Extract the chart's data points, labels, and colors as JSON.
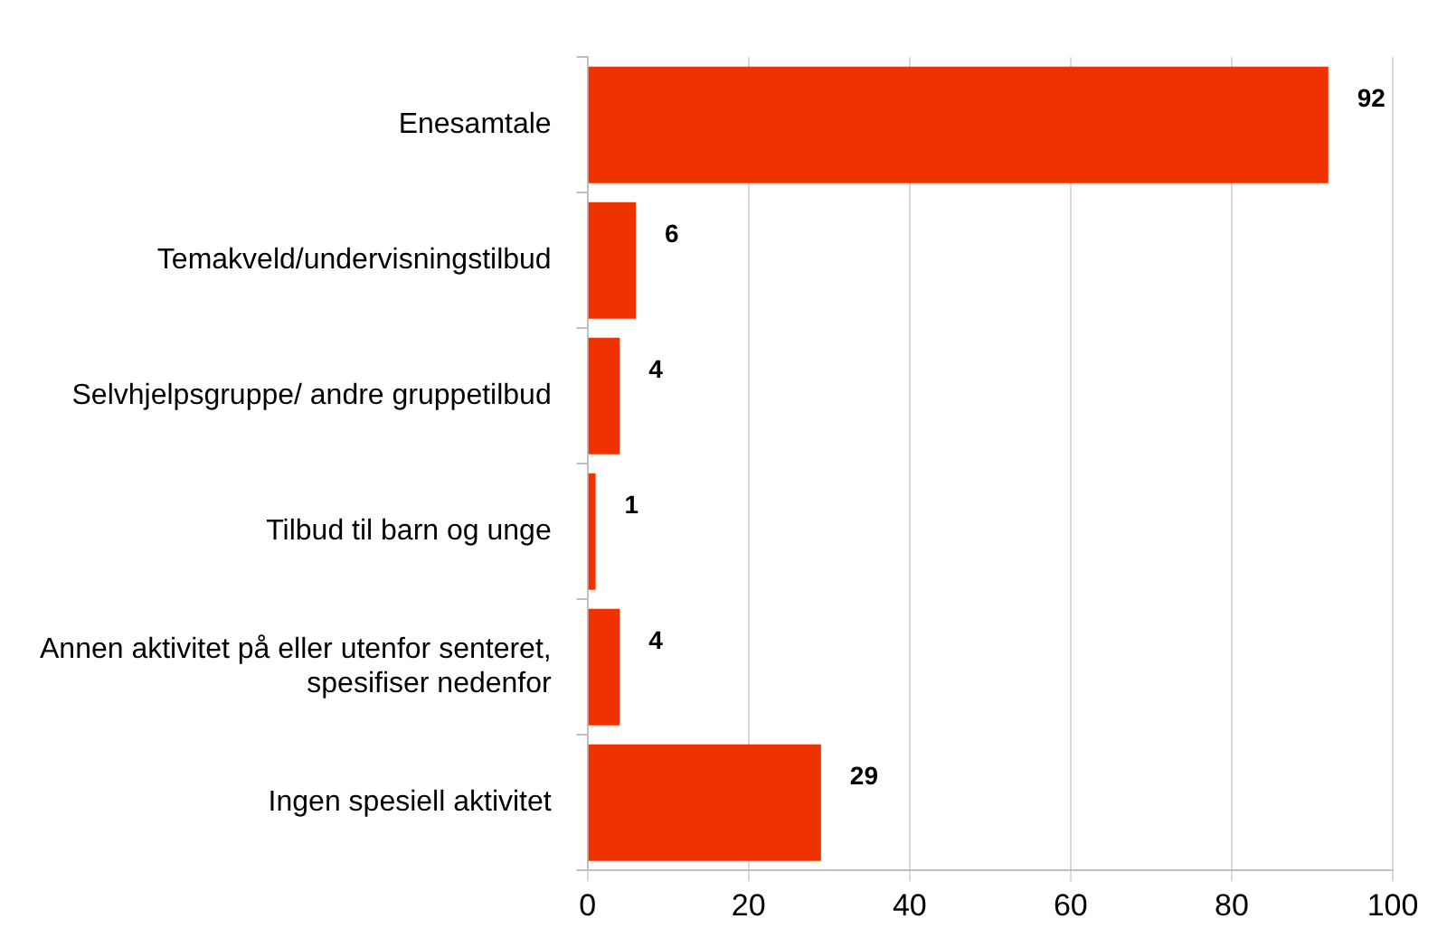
{
  "chart_data": {
    "type": "bar",
    "orientation": "horizontal",
    "categories": [
      "Enesamtale",
      "Temakveld/undervisningstilbud",
      "Selvhjelpsgruppe/ andre gruppetilbud",
      "Tilbud til barn og unge",
      "Annen aktivitet på eller utenfor senteret, spesifiser nedenfor",
      "Ingen spesiell aktivitet"
    ],
    "values": [
      92,
      6,
      4,
      1,
      4,
      29
    ],
    "color": "#ee3300",
    "xlim": [
      0,
      100
    ],
    "xticks": [
      0,
      20,
      40,
      60,
      80,
      100
    ],
    "grid": "x",
    "legend": false,
    "data_labels": true
  }
}
